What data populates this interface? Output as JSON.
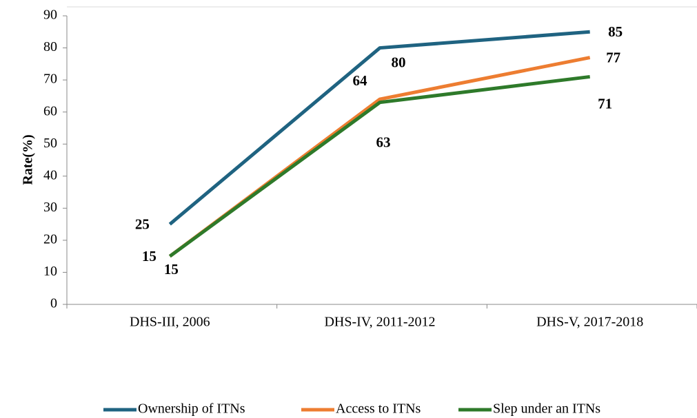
{
  "chart_data": {
    "type": "line",
    "y_label": "Rate(%)",
    "categories": [
      "DHS-III, 2006",
      "DHS-IV, 2011-2012",
      "DHS-V, 2017-2018"
    ],
    "series": [
      {
        "name": "Ownership of ITNs",
        "color": "#1f6381",
        "values": [
          25,
          80,
          85
        ]
      },
      {
        "name": "Access to ITNs",
        "color": "#ed7d31",
        "values": [
          15,
          64,
          77
        ]
      },
      {
        "name": "Slep under an ITNs",
        "color": "#2e7a2a",
        "values": [
          15,
          63,
          71
        ]
      }
    ],
    "ylim": [
      0,
      90
    ],
    "yticks": [
      0,
      10,
      20,
      30,
      40,
      50,
      60,
      70,
      80,
      90
    ],
    "grid": false,
    "legend": "bottom"
  }
}
